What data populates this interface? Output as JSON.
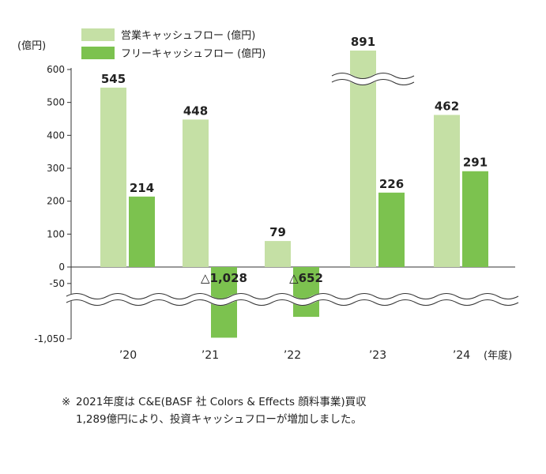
{
  "chart_data": {
    "type": "bar",
    "unit_label": "(億円)",
    "categories": [
      "’20",
      "’21",
      "’22",
      "’23",
      "’24"
    ],
    "x_suffix": "(年度)",
    "series": [
      {
        "name": "営業キャッシュフロー (億円)",
        "color": "#c5e0a5",
        "values": [
          545,
          448,
          79,
          891,
          462
        ]
      },
      {
        "name": "フリーキャッシュフロー (億円)",
        "color": "#7cc24f",
        "values": [
          214,
          -1028,
          -652,
          226,
          291
        ]
      }
    ],
    "value_labels": [
      [
        "545",
        "448",
        "79",
        "891",
        "462"
      ],
      [
        "214",
        "△1,028",
        "△652",
        "226",
        "291"
      ]
    ],
    "y_ticks": [
      "600",
      "500",
      "400",
      "300",
      "200",
      "100",
      "0",
      "-50",
      "-1,050"
    ],
    "ylim": [
      -1050,
      600
    ],
    "axis_breaks": [
      "between -50 and -1,050",
      "above 600 (Operating CF ’23)"
    ],
    "legend_position": "top"
  },
  "note": {
    "mark": "※",
    "line1": "2021年度は C&E(BASF 社 Colors & Effects 顔料事業)買収",
    "line2": "1,289億円により、投資キャッシュフローが増加しました。"
  }
}
